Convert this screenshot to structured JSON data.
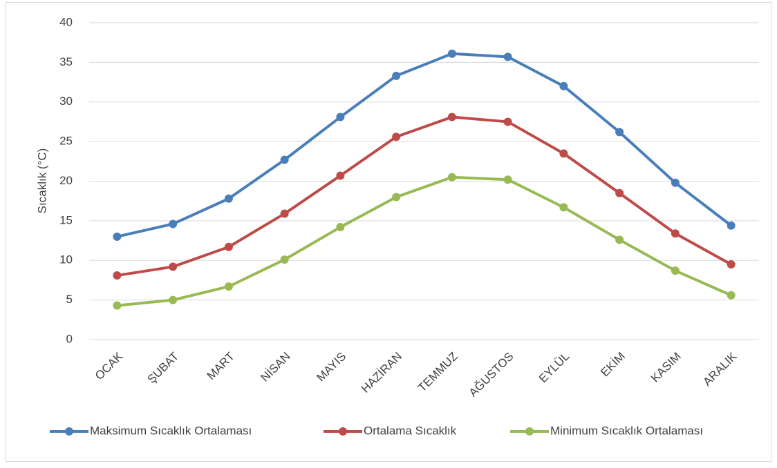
{
  "chart_data": {
    "type": "line",
    "y_label": "Sıcaklık (°C)",
    "categories": [
      "OCAK",
      "ŞUBAT",
      "MART",
      "NİSAN",
      "MAYIS",
      "HAZİRAN",
      "TEMMUZ",
      "AĞUSTOS",
      "EYLÜL",
      "EKİM",
      "KASIM",
      "ARALIK"
    ],
    "series": [
      {
        "name": "Maksimum Sıcaklık Ortalaması",
        "color": "#4a7ebb",
        "values": [
          13.0,
          14.6,
          17.8,
          22.7,
          28.1,
          33.3,
          36.1,
          35.7,
          32.0,
          26.2,
          19.8,
          14.4
        ]
      },
      {
        "name": "Ortalama Sıcaklık",
        "color": "#be4b48",
        "values": [
          8.1,
          9.2,
          11.7,
          15.9,
          20.7,
          25.6,
          28.1,
          27.5,
          23.5,
          18.5,
          13.4,
          9.5
        ]
      },
      {
        "name": "Minimum Sıcaklık Ortalaması",
        "color": "#98b954",
        "values": [
          4.3,
          5.0,
          6.7,
          10.1,
          14.2,
          18.0,
          20.5,
          20.2,
          16.7,
          12.6,
          8.7,
          5.6
        ]
      }
    ],
    "ylim": [
      0,
      40
    ],
    "yticks": [
      0,
      5,
      10,
      15,
      20,
      25,
      30,
      35,
      40
    ],
    "grid": true,
    "legend": "bottom"
  }
}
